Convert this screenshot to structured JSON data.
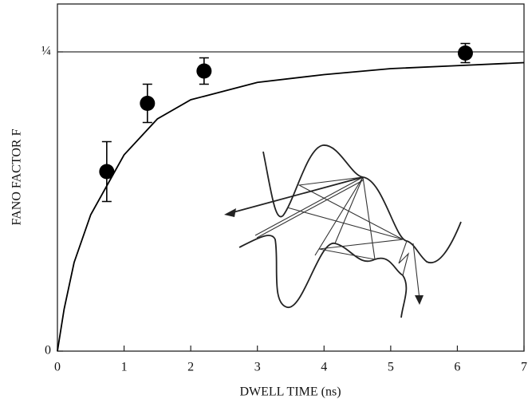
{
  "chart_data": {
    "type": "scatter",
    "xlabel": "DWELL TIME (ns)",
    "ylabel": "FANO FACTOR F",
    "xlim": [
      0,
      7
    ],
    "ylim": [
      0,
      0.29
    ],
    "xticks": [
      0,
      1,
      2,
      3,
      4,
      5,
      6,
      7
    ],
    "yticks": [
      0,
      {
        "value": 0.25,
        "label": "¼"
      }
    ],
    "hline": 0.25,
    "points": {
      "color": "#000000",
      "x": [
        0.74,
        1.35,
        2.2,
        6.12
      ],
      "values": [
        0.15,
        0.207,
        0.234,
        0.249
      ],
      "errors": [
        0.025,
        0.016,
        0.011,
        0.008
      ]
    },
    "curve": {
      "color": "#000000",
      "x": [
        0,
        0.1,
        0.25,
        0.5,
        0.75,
        1,
        1.5,
        2,
        3,
        4,
        5,
        6,
        7
      ],
      "values": [
        0,
        0.035,
        0.074,
        0.114,
        0.139,
        0.164,
        0.194,
        0.21,
        0.2245,
        0.231,
        0.236,
        0.2385,
        0.241
      ]
    }
  }
}
